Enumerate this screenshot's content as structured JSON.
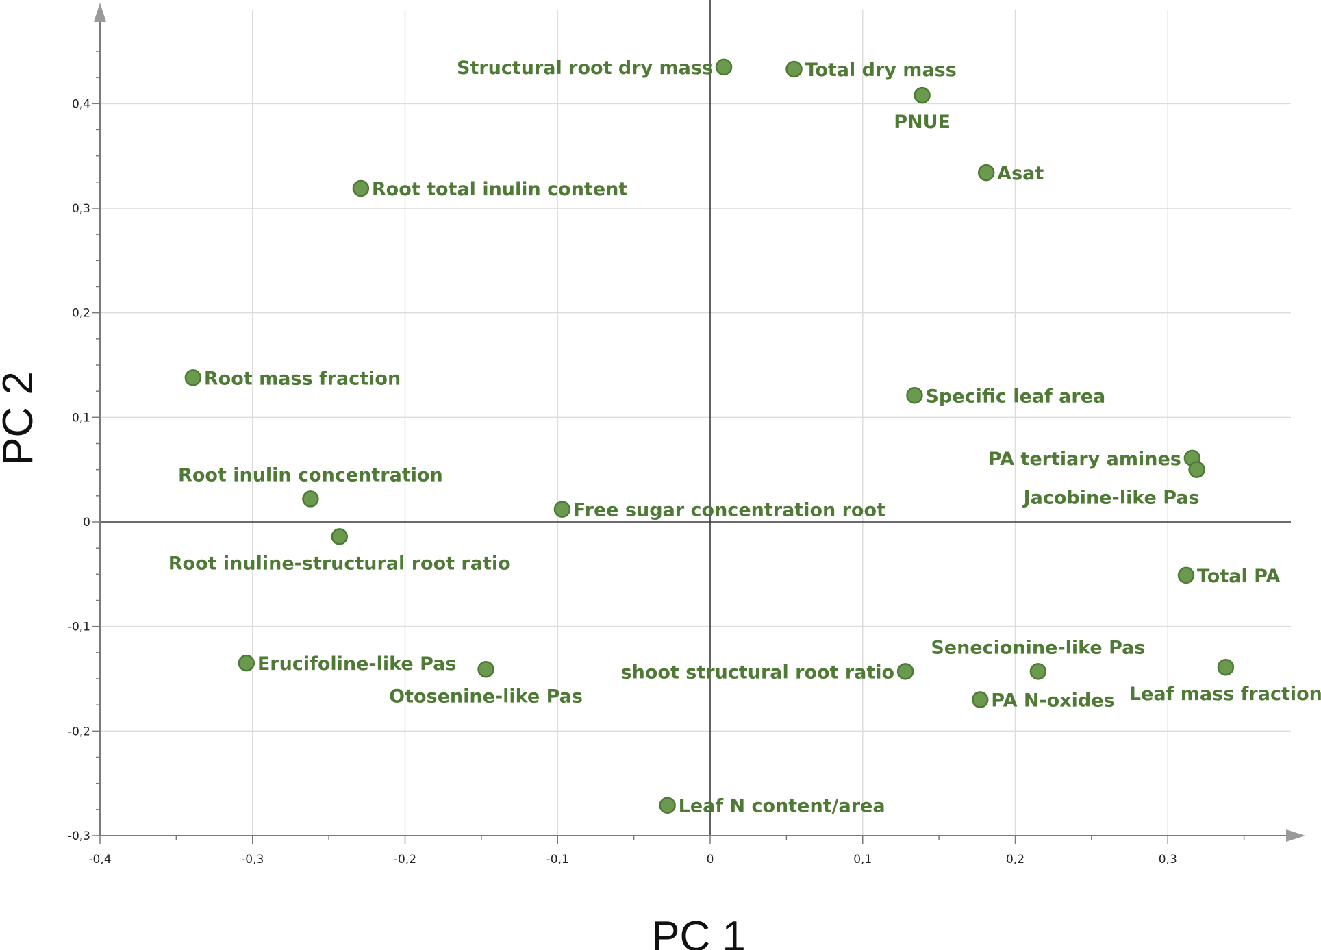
{
  "chart_data": {
    "type": "scatter",
    "xlabel": "PC 1",
    "ylabel": "PC 2",
    "xlim": [
      -0.4,
      0.39
    ],
    "ylim": [
      -0.3,
      0.5
    ],
    "xticks": [
      -0.4,
      -0.3,
      -0.2,
      -0.1,
      0,
      0.1,
      0.2,
      0.3
    ],
    "yticks": [
      -0.3,
      -0.2,
      -0.1,
      0,
      0.1,
      0.2,
      0.3,
      0.4
    ],
    "xtick_labels": [
      "-0,4",
      "-0,3",
      "-0,2",
      "-0,1",
      "0",
      "0,1",
      "0,2",
      "0,3"
    ],
    "ytick_labels": [
      "-0,3",
      "-0,2",
      "-0,1",
      "0",
      "0,1",
      "0,2",
      "0,3",
      "0,4"
    ],
    "grid": true,
    "point_color": "#6b9a4f",
    "point_edge": "#4d7a36",
    "label_color": "#4f7a35",
    "points": [
      {
        "label": "Structural root dry mass",
        "x": 0.009,
        "y": 0.435,
        "pos": "left"
      },
      {
        "label": "Total dry mass",
        "x": 0.055,
        "y": 0.433,
        "pos": "right"
      },
      {
        "label": "PNUE",
        "x": 0.139,
        "y": 0.408,
        "pos": "below"
      },
      {
        "label": "Asat",
        "x": 0.181,
        "y": 0.334,
        "pos": "right"
      },
      {
        "label": "Root total inulin content",
        "x": -0.229,
        "y": 0.319,
        "pos": "right"
      },
      {
        "label": "Root mass fraction",
        "x": -0.339,
        "y": 0.138,
        "pos": "right"
      },
      {
        "label": "Specific leaf area",
        "x": 0.134,
        "y": 0.121,
        "pos": "right"
      },
      {
        "label": "PA  tertiary amines",
        "x": 0.316,
        "y": 0.061,
        "pos": "left"
      },
      {
        "label": "Jacobine-like Pas",
        "x": 0.319,
        "y": 0.05,
        "pos": "below-left"
      },
      {
        "label": "Root inulin concentration",
        "x": -0.262,
        "y": 0.022,
        "pos": "above"
      },
      {
        "label": "Free sugar concentration root",
        "x": -0.097,
        "y": 0.012,
        "pos": "right"
      },
      {
        "label": "Root inuline-structural root ratio",
        "x": -0.243,
        "y": -0.014,
        "pos": "below"
      },
      {
        "label": "Total PA",
        "x": 0.312,
        "y": -0.051,
        "pos": "right"
      },
      {
        "label": "Erucifoline-like Pas",
        "x": -0.304,
        "y": -0.135,
        "pos": "right"
      },
      {
        "label": "Otosenine-like Pas",
        "x": -0.147,
        "y": -0.141,
        "pos": "below"
      },
      {
        "label": "shoot structural root ratio",
        "x": 0.128,
        "y": -0.143,
        "pos": "left"
      },
      {
        "label": "Senecionine-like Pas",
        "x": 0.215,
        "y": -0.143,
        "pos": "above"
      },
      {
        "label": "Leaf mass fraction",
        "x": 0.338,
        "y": -0.139,
        "pos": "below"
      },
      {
        "label": "PA N-oxides",
        "x": 0.177,
        "y": -0.17,
        "pos": "right"
      },
      {
        "label": "Leaf N content/area",
        "x": -0.028,
        "y": -0.271,
        "pos": "right"
      }
    ]
  }
}
